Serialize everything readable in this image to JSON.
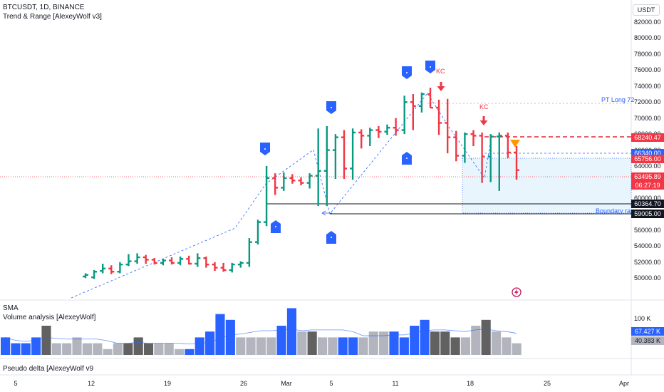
{
  "header": {
    "symbol_line": "BTCUSDT, 1D, BINANCE",
    "indicator_line": "Trend & Range [AlexeyWolf v3]",
    "currency": "USDT"
  },
  "price_axis": [
    "82000.00",
    "80000.00",
    "78000.00",
    "76000.00",
    "74000.00",
    "72000.00",
    "70000.00",
    "68000.00",
    "66000.00",
    "64000.00",
    "62000.00",
    "60000.00",
    "58000.00",
    "56000.00",
    "54000.00",
    "52000.00",
    "50000.00"
  ],
  "price_tags": {
    "p68240": "68240.47",
    "p66340": "66340.00",
    "p65756": "65756.00",
    "last": "63495.89",
    "countdown": "06:27:19",
    "p60364": "60364.70",
    "p59005": "59005.00"
  },
  "annotations": {
    "pt_long": "PT Long 72",
    "boundary": "Boundary ran",
    "kc1": "KC",
    "kc2": "KC"
  },
  "volume_pane": {
    "sma_label": "SMA",
    "title": "Volume analysis [AlexeyWolf]",
    "axis_100k": "100 K",
    "tag1": "67.427 K",
    "tag2": "40.383 K"
  },
  "delta_pane": {
    "title": "Pseudo delta [AlexeyWolf v9"
  },
  "time_axis": [
    "5",
    "12",
    "19",
    "26",
    "Mar",
    "5",
    "11",
    "18",
    "25",
    "Apr"
  ],
  "colors": {
    "up": "#089981",
    "down": "#f23645",
    "blue": "#2962ff",
    "dark_red": "#e0283a"
  },
  "chart_data": {
    "type": "bar",
    "ylim": [
      49000,
      83000
    ],
    "candles": [
      {
        "o": 50200,
        "h": 50600,
        "l": 50000,
        "c": 50400
      },
      {
        "o": 50100,
        "h": 51000,
        "l": 49900,
        "c": 50800
      },
      {
        "o": 50900,
        "h": 51800,
        "l": 50600,
        "c": 51200
      },
      {
        "o": 51200,
        "h": 51600,
        "l": 50500,
        "c": 50800
      },
      {
        "o": 50800,
        "h": 52000,
        "l": 50600,
        "c": 51700
      },
      {
        "o": 51700,
        "h": 53000,
        "l": 51500,
        "c": 52100
      },
      {
        "o": 52100,
        "h": 53100,
        "l": 51800,
        "c": 52600
      },
      {
        "o": 52600,
        "h": 52900,
        "l": 51800,
        "c": 52300
      },
      {
        "o": 52300,
        "h": 52500,
        "l": 51700,
        "c": 51900
      },
      {
        "o": 51900,
        "h": 52400,
        "l": 51600,
        "c": 52200
      },
      {
        "o": 52200,
        "h": 52600,
        "l": 51700,
        "c": 51900
      },
      {
        "o": 51900,
        "h": 52700,
        "l": 51600,
        "c": 52400
      },
      {
        "o": 52400,
        "h": 52800,
        "l": 51700,
        "c": 51800
      },
      {
        "o": 51800,
        "h": 53100,
        "l": 51400,
        "c": 52500
      },
      {
        "o": 52500,
        "h": 52700,
        "l": 51300,
        "c": 51700
      },
      {
        "o": 51700,
        "h": 52000,
        "l": 50900,
        "c": 51300
      },
      {
        "o": 51300,
        "h": 51900,
        "l": 50800,
        "c": 51000
      },
      {
        "o": 51000,
        "h": 51900,
        "l": 50700,
        "c": 51700
      },
      {
        "o": 51700,
        "h": 52100,
        "l": 51300,
        "c": 51900
      },
      {
        "o": 51900,
        "h": 55000,
        "l": 51400,
        "c": 54500
      },
      {
        "o": 54500,
        "h": 57300,
        "l": 54200,
        "c": 57000
      },
      {
        "o": 57000,
        "h": 64000,
        "l": 56500,
        "c": 62500
      },
      {
        "o": 62500,
        "h": 63100,
        "l": 60400,
        "c": 61300
      },
      {
        "o": 61300,
        "h": 63200,
        "l": 60900,
        "c": 62500
      },
      {
        "o": 62500,
        "h": 63000,
        "l": 61800,
        "c": 62200
      },
      {
        "o": 62200,
        "h": 62600,
        "l": 61600,
        "c": 61900
      },
      {
        "o": 61900,
        "h": 63100,
        "l": 61200,
        "c": 62800
      },
      {
        "o": 62800,
        "h": 68700,
        "l": 59000,
        "c": 63400
      },
      {
        "o": 63400,
        "h": 69000,
        "l": 59000,
        "c": 66000
      },
      {
        "o": 66000,
        "h": 68000,
        "l": 62400,
        "c": 67600
      },
      {
        "o": 67600,
        "h": 68500,
        "l": 62400,
        "c": 63700
      },
      {
        "o": 63700,
        "h": 68700,
        "l": 62300,
        "c": 68200
      },
      {
        "o": 68200,
        "h": 68600,
        "l": 66200,
        "c": 67800
      },
      {
        "o": 67800,
        "h": 68800,
        "l": 66500,
        "c": 68500
      },
      {
        "o": 68500,
        "h": 69000,
        "l": 67500,
        "c": 68300
      },
      {
        "o": 68300,
        "h": 69200,
        "l": 67900,
        "c": 68800
      },
      {
        "o": 68800,
        "h": 70000,
        "l": 67800,
        "c": 68500
      },
      {
        "o": 68500,
        "h": 72800,
        "l": 68000,
        "c": 72000
      },
      {
        "o": 72000,
        "h": 73000,
        "l": 68500,
        "c": 71500
      },
      {
        "o": 71500,
        "h": 73200,
        "l": 70700,
        "c": 73000
      },
      {
        "o": 73000,
        "h": 73800,
        "l": 71300,
        "c": 71300
      },
      {
        "o": 71300,
        "h": 72300,
        "l": 67900,
        "c": 69400
      },
      {
        "o": 69400,
        "h": 72400,
        "l": 65600,
        "c": 67600
      },
      {
        "o": 67600,
        "h": 68400,
        "l": 64600,
        "c": 65300
      },
      {
        "o": 65300,
        "h": 68200,
        "l": 64400,
        "c": 68000
      },
      {
        "o": 68000,
        "h": 68500,
        "l": 66500,
        "c": 67800
      },
      {
        "o": 67800,
        "h": 68200,
        "l": 61900,
        "c": 65200
      },
      {
        "o": 65200,
        "h": 68000,
        "l": 62000,
        "c": 67700
      },
      {
        "o": 67700,
        "h": 68200,
        "l": 60900,
        "c": 67800
      },
      {
        "o": 67800,
        "h": 68200,
        "l": 65000,
        "c": 65700
      },
      {
        "o": 65700,
        "h": 66500,
        "l": 62300,
        "c": 63500
      }
    ],
    "volume": [
      3,
      2,
      2,
      3,
      5,
      2,
      2,
      3,
      2,
      2,
      1,
      2,
      2,
      3,
      2,
      2,
      2,
      1,
      1,
      3,
      4,
      7,
      6,
      3,
      3,
      3,
      3,
      5,
      8,
      4,
      4,
      3,
      3,
      3,
      3,
      3,
      4,
      4,
      4,
      3,
      5,
      6,
      4,
      4,
      3,
      3,
      5,
      6,
      4,
      3,
      2
    ]
  }
}
